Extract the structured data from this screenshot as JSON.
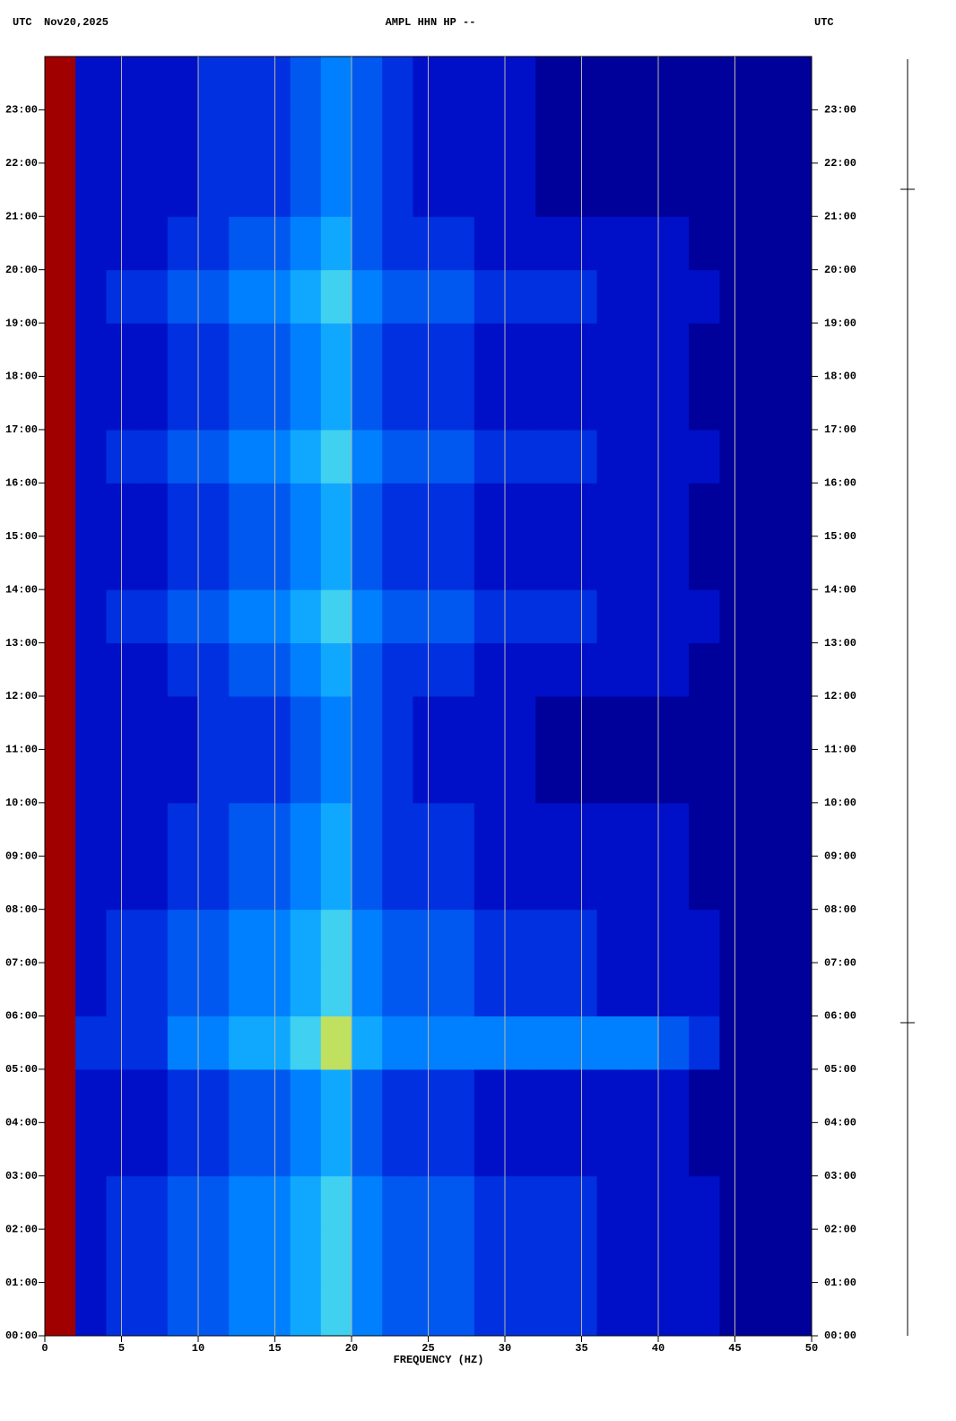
{
  "chart_data": {
    "type": "spectrogram",
    "title": "AMPL HHN HP --",
    "left_header": "UTC",
    "date": "Nov20,2025",
    "right_header": "UTC",
    "xlabel": "FREQUENCY (HZ)",
    "xlim": [
      0,
      50
    ],
    "ylim": [
      0,
      24
    ],
    "xticks": [
      0,
      5,
      10,
      15,
      20,
      25,
      30,
      35,
      40,
      45,
      50
    ],
    "yticks": [
      {
        "value": 0,
        "label": "00:00"
      },
      {
        "value": 1,
        "label": "01:00"
      },
      {
        "value": 2,
        "label": "02:00"
      },
      {
        "value": 3,
        "label": "03:00"
      },
      {
        "value": 4,
        "label": "04:00"
      },
      {
        "value": 5,
        "label": "05:00"
      },
      {
        "value": 6,
        "label": "06:00"
      },
      {
        "value": 7,
        "label": "07:00"
      },
      {
        "value": 8,
        "label": "08:00"
      },
      {
        "value": 9,
        "label": "09:00"
      },
      {
        "value": 10,
        "label": "10:00"
      },
      {
        "value": 11,
        "label": "11:00"
      },
      {
        "value": 12,
        "label": "12:00"
      },
      {
        "value": 13,
        "label": "13:00"
      },
      {
        "value": 14,
        "label": "14:00"
      },
      {
        "value": 15,
        "label": "15:00"
      },
      {
        "value": 16,
        "label": "16:00"
      },
      {
        "value": 17,
        "label": "17:00"
      },
      {
        "value": 18,
        "label": "18:00"
      },
      {
        "value": 19,
        "label": "19:00"
      },
      {
        "value": 20,
        "label": "20:00"
      },
      {
        "value": 21,
        "label": "21:00"
      },
      {
        "value": 22,
        "label": "22:00"
      },
      {
        "value": 23,
        "label": "23:00"
      }
    ],
    "grid": true,
    "grid_color": "#b8b8a0",
    "colors": [
      "#000080",
      "#00009a",
      "#0010c8",
      "#0030e0",
      "#0058f0",
      "#0080ff",
      "#10a8ff",
      "#40d0f0",
      "#c0e060",
      "#a00000"
    ],
    "xbins": [
      0,
      2,
      4,
      6,
      8,
      10,
      12,
      14,
      16,
      18,
      20,
      22,
      24,
      26,
      28,
      30,
      32,
      34,
      36,
      38,
      40,
      42,
      44,
      46,
      48,
      50
    ],
    "ybins": [
      0,
      1,
      2,
      3,
      4,
      5,
      6,
      7,
      8,
      9,
      10,
      11,
      12,
      13,
      14,
      15,
      16,
      17,
      18,
      19,
      20,
      21,
      22,
      23,
      24
    ],
    "z": [
      [
        9,
        2,
        3,
        3,
        4,
        4,
        5,
        5,
        6,
        7,
        5,
        4,
        4,
        4,
        3,
        3,
        3,
        3,
        2,
        2,
        2,
        2,
        1,
        1,
        1
      ],
      [
        9,
        2,
        3,
        3,
        4,
        4,
        5,
        5,
        6,
        7,
        5,
        4,
        4,
        4,
        3,
        3,
        3,
        3,
        2,
        2,
        2,
        2,
        1,
        1,
        1
      ],
      [
        9,
        2,
        3,
        3,
        4,
        4,
        5,
        5,
        6,
        7,
        5,
        4,
        4,
        4,
        3,
        3,
        3,
        3,
        2,
        2,
        2,
        2,
        1,
        1,
        1
      ],
      [
        9,
        2,
        2,
        2,
        3,
        3,
        4,
        4,
        5,
        6,
        4,
        3,
        3,
        3,
        2,
        2,
        2,
        2,
        2,
        2,
        2,
        1,
        1,
        1,
        1
      ],
      [
        9,
        2,
        2,
        2,
        3,
        3,
        4,
        4,
        5,
        6,
        4,
        3,
        3,
        3,
        2,
        2,
        2,
        2,
        2,
        2,
        2,
        1,
        1,
        1,
        1
      ],
      [
        9,
        3,
        3,
        3,
        5,
        5,
        6,
        6,
        7,
        8,
        6,
        5,
        5,
        5,
        5,
        5,
        5,
        5,
        5,
        5,
        4,
        3,
        1,
        1,
        1
      ],
      [
        9,
        2,
        3,
        3,
        4,
        4,
        5,
        5,
        6,
        7,
        5,
        4,
        4,
        4,
        3,
        3,
        3,
        3,
        2,
        2,
        2,
        2,
        1,
        1,
        1
      ],
      [
        9,
        2,
        3,
        3,
        4,
        4,
        5,
        5,
        6,
        7,
        5,
        4,
        4,
        4,
        3,
        3,
        3,
        3,
        2,
        2,
        2,
        2,
        1,
        1,
        1
      ],
      [
        9,
        2,
        2,
        2,
        3,
        3,
        4,
        4,
        5,
        6,
        4,
        3,
        3,
        3,
        2,
        2,
        2,
        2,
        2,
        2,
        2,
        1,
        1,
        1,
        1
      ],
      [
        9,
        2,
        2,
        2,
        3,
        3,
        4,
        4,
        5,
        6,
        4,
        3,
        3,
        3,
        2,
        2,
        2,
        2,
        2,
        2,
        2,
        1,
        1,
        1,
        1
      ],
      [
        9,
        2,
        2,
        2,
        2,
        3,
        3,
        3,
        4,
        5,
        4,
        3,
        2,
        2,
        2,
        2,
        1,
        1,
        1,
        1,
        1,
        1,
        1,
        1,
        1
      ],
      [
        9,
        2,
        2,
        2,
        2,
        3,
        3,
        3,
        4,
        5,
        4,
        3,
        2,
        2,
        2,
        2,
        1,
        1,
        1,
        1,
        1,
        1,
        1,
        1,
        1
      ],
      [
        9,
        2,
        2,
        2,
        3,
        3,
        4,
        4,
        5,
        6,
        4,
        3,
        3,
        3,
        2,
        2,
        2,
        2,
        2,
        2,
        2,
        1,
        1,
        1,
        1
      ],
      [
        9,
        2,
        3,
        3,
        4,
        4,
        5,
        5,
        6,
        7,
        5,
        4,
        4,
        4,
        3,
        3,
        3,
        3,
        2,
        2,
        2,
        2,
        1,
        1,
        1
      ],
      [
        9,
        2,
        2,
        2,
        3,
        3,
        4,
        4,
        5,
        6,
        4,
        3,
        3,
        3,
        2,
        2,
        2,
        2,
        2,
        2,
        2,
        1,
        1,
        1,
        1
      ],
      [
        9,
        2,
        2,
        2,
        3,
        3,
        4,
        4,
        5,
        6,
        4,
        3,
        3,
        3,
        2,
        2,
        2,
        2,
        2,
        2,
        2,
        1,
        1,
        1,
        1
      ],
      [
        9,
        2,
        3,
        3,
        4,
        4,
        5,
        5,
        6,
        7,
        5,
        4,
        4,
        4,
        3,
        3,
        3,
        3,
        2,
        2,
        2,
        2,
        1,
        1,
        1
      ],
      [
        9,
        2,
        2,
        2,
        3,
        3,
        4,
        4,
        5,
        6,
        4,
        3,
        3,
        3,
        2,
        2,
        2,
        2,
        2,
        2,
        2,
        1,
        1,
        1,
        1
      ],
      [
        9,
        2,
        2,
        2,
        3,
        3,
        4,
        4,
        5,
        6,
        4,
        3,
        3,
        3,
        2,
        2,
        2,
        2,
        2,
        2,
        2,
        1,
        1,
        1,
        1
      ],
      [
        9,
        2,
        3,
        3,
        4,
        4,
        5,
        5,
        6,
        7,
        5,
        4,
        4,
        4,
        3,
        3,
        3,
        3,
        2,
        2,
        2,
        2,
        1,
        1,
        1
      ],
      [
        9,
        2,
        2,
        2,
        3,
        3,
        4,
        4,
        5,
        6,
        4,
        3,
        3,
        3,
        2,
        2,
        2,
        2,
        2,
        2,
        2,
        1,
        1,
        1,
        1
      ],
      [
        9,
        2,
        2,
        2,
        2,
        3,
        3,
        3,
        4,
        5,
        4,
        3,
        2,
        2,
        2,
        2,
        1,
        1,
        1,
        1,
        1,
        1,
        1,
        1,
        1
      ],
      [
        9,
        2,
        2,
        2,
        2,
        3,
        3,
        3,
        4,
        5,
        4,
        3,
        2,
        2,
        2,
        2,
        1,
        1,
        1,
        1,
        1,
        1,
        1,
        1,
        1
      ],
      [
        9,
        2,
        2,
        2,
        2,
        3,
        3,
        3,
        4,
        5,
        4,
        3,
        2,
        2,
        2,
        2,
        1,
        1,
        1,
        1,
        1,
        1,
        1,
        1,
        1
      ]
    ]
  }
}
